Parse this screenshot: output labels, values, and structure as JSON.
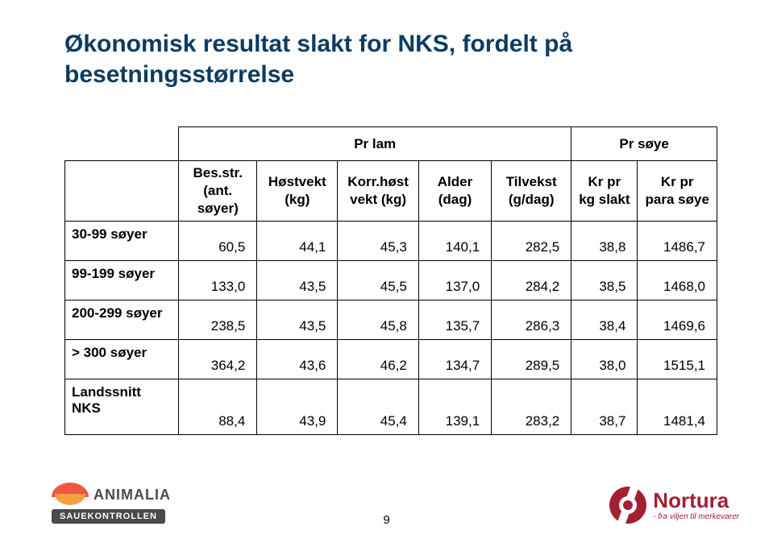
{
  "title_line1": "Økonomisk resultat slakt for NKS, fordelt på",
  "title_line2": "besetningsstørrelse",
  "super_headers": {
    "lam": "Pr lam",
    "soye": "Pr søye"
  },
  "col_headers": {
    "bes": "Bes.str.\n(ant. søyer)",
    "host": "Høstvekt\n(kg)",
    "korr": "Korr.høst\nvekt (kg)",
    "alder": "Alder\n(dag)",
    "tilv": "Tilvekst\n(g/dag)",
    "krslakt": "Kr pr\nkg slakt",
    "krpara": "Kr pr\npara søye"
  },
  "rows": [
    {
      "label": "30-99 søyer",
      "v": [
        "60,5",
        "44,1",
        "45,3",
        "140,1",
        "282,5",
        "38,8",
        "1486,7"
      ]
    },
    {
      "label": "99-199 søyer",
      "v": [
        "133,0",
        "43,5",
        "45,5",
        "137,0",
        "284,2",
        "38,5",
        "1468,0"
      ]
    },
    {
      "label": "200-299 søyer",
      "v": [
        "238,5",
        "43,5",
        "45,8",
        "135,7",
        "286,3",
        "38,4",
        "1469,6"
      ]
    },
    {
      "label": "> 300 søyer",
      "v": [
        "364,2",
        "43,6",
        "46,2",
        "134,7",
        "289,5",
        "38,0",
        "1515,1"
      ]
    },
    {
      "label": "Landssnitt NKS",
      "v": [
        "88,4",
        "43,9",
        "45,4",
        "139,1",
        "283,2",
        "38,7",
        "1481,4"
      ]
    }
  ],
  "page_number": "9",
  "logos": {
    "animalia": "ANIMALIA",
    "sauekontrollen": "SAUEKONTROLLEN",
    "nortura": "Nortura",
    "nortura_tag": "- fra viljen til merkevarer"
  },
  "colors": {
    "title": "#0c3c60",
    "nortura": "#a31f34",
    "animalia_orange": "#f1563f",
    "animalia_amber": "#f1a13f",
    "animalia_text": "#4a4a48"
  }
}
